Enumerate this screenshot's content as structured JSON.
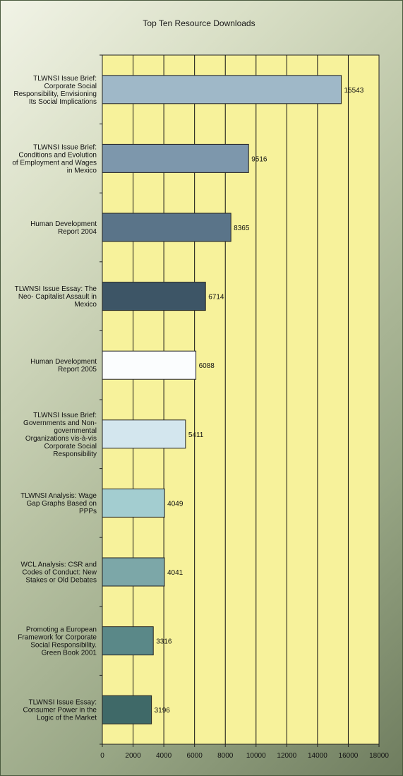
{
  "chart_data": {
    "type": "bar",
    "orientation": "horizontal",
    "title": "Top Ten Resource Downloads",
    "categories": [
      "TLWNSI Issue Brief: Corporate Social Responsibility, Envisioning Its Social Implications",
      "TLWNSI Issue Brief: Conditions and Evolution of Employment and Wages in Mexico",
      "Human Development Report 2004",
      "TLWNSI Issue Essay:  The Neo- Capitalist Assault in Mexico",
      "Human Development Report 2005",
      "TLWNSI Issue Brief: Governments and Non-governmental Organizations vis-à-vis Corporate Social Responsibility",
      "TLWNSI Analysis:  Wage Gap Graphs Based on PPPs",
      "WCL Analysis:  CSR and Codes of Conduct: New Stakes or Old Debates",
      "Promoting a European Framework for Corporate Social Responsibility. Green Book 2001",
      "TLWNSI Issue Essay: Consumer Power in the Logic of the Market"
    ],
    "category_lines": [
      [
        "TLWNSI Issue Brief:",
        "Corporate Social",
        "Responsibility, Envisioning",
        "Its Social Implications"
      ],
      [
        "TLWNSI Issue Brief:",
        "Conditions and Evolution",
        "of Employment and Wages",
        "in Mexico"
      ],
      [
        "Human Development",
        "Report 2004"
      ],
      [
        "TLWNSI Issue Essay:  The",
        "Neo- Capitalist Assault in",
        "Mexico"
      ],
      [
        "Human Development",
        "Report 2005"
      ],
      [
        "TLWNSI Issue Brief:",
        "Governments and Non-",
        "governmental",
        "Organizations vis-à-vis",
        "Corporate Social",
        "Responsibility"
      ],
      [
        "TLWNSI Analysis:  Wage",
        "Gap Graphs Based on",
        "PPPs"
      ],
      [
        "WCL Analysis:  CSR and",
        "Codes of Conduct: New",
        "Stakes or Old Debates"
      ],
      [
        "Promoting a European",
        "Framework for Corporate",
        "Social Responsibility.",
        "Green Book 2001"
      ],
      [
        "TLWNSI Issue Essay:",
        "Consumer Power in the",
        "Logic of the Market"
      ]
    ],
    "values": [
      15543,
      9516,
      8365,
      6714,
      6088,
      5411,
      4049,
      4041,
      3316,
      3196
    ],
    "value_labels": [
      "15543",
      "9516",
      "8365",
      "6714",
      "6088",
      "5411",
      "4049",
      "4041",
      "3316",
      "3196"
    ],
    "bar_colors": [
      "#9fb8c8",
      "#7d97ac",
      "#5a7489",
      "#3d5566",
      "#fbfdfe",
      "#d3e6ee",
      "#a3cdd0",
      "#7ca7a8",
      "#5a8888",
      "#3f6968"
    ],
    "xlim": [
      0,
      18000
    ],
    "xticks": [
      0,
      2000,
      4000,
      6000,
      8000,
      10000,
      12000,
      14000,
      16000,
      18000
    ],
    "xtick_labels": [
      "0",
      "2000",
      "4000",
      "6000",
      "8000",
      "10000",
      "12000",
      "14000",
      "16000",
      "18000"
    ],
    "grid": "vertical",
    "plot_background": "#f7f29b",
    "legend": "none"
  }
}
